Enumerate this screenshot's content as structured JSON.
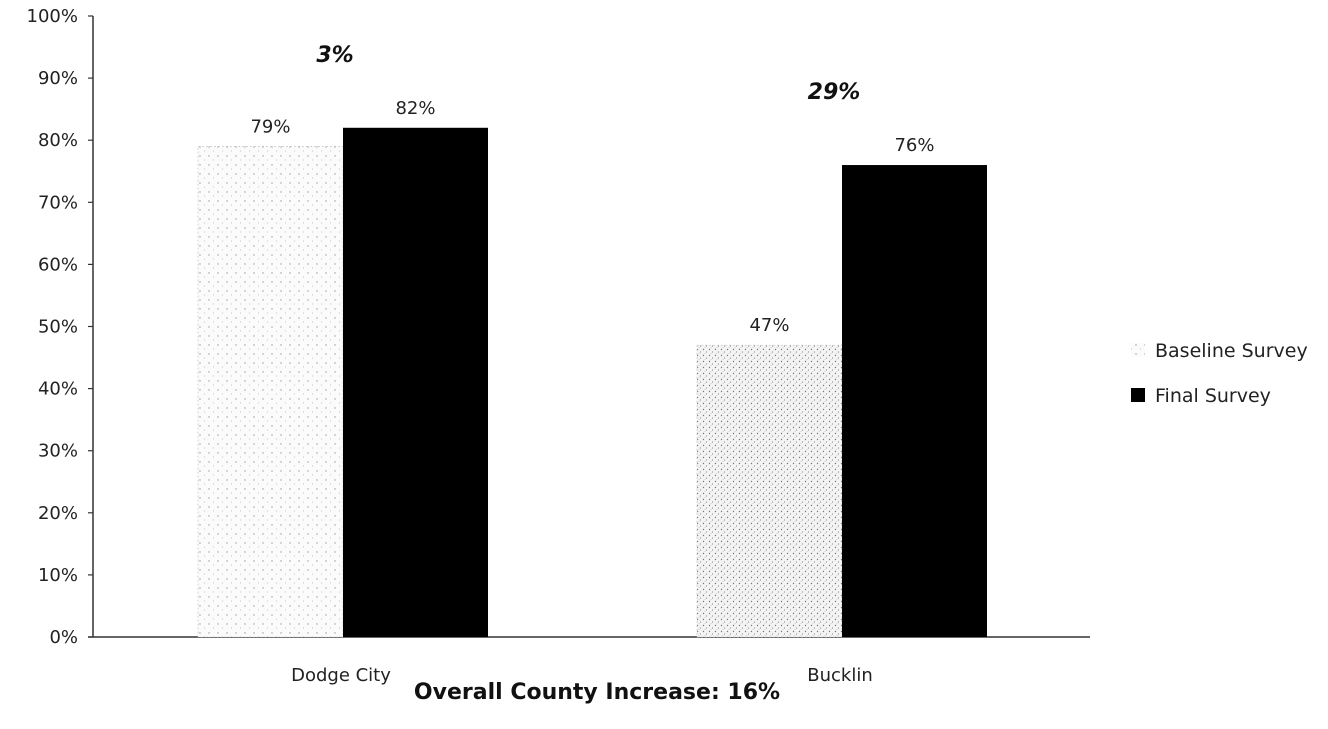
{
  "chart_data": {
    "type": "bar",
    "categories": [
      "Dodge City",
      "Bucklin"
    ],
    "series": [
      {
        "name": "Baseline Survey",
        "values": [
          79,
          47
        ],
        "color": "#f2f2f2",
        "pattern": "sparse-dots"
      },
      {
        "name": "Final Survey",
        "values": [
          82,
          76
        ],
        "color": "#000000",
        "pattern": "solid"
      }
    ],
    "data_labels": [
      [
        "79%",
        "47%"
      ],
      [
        "82%",
        "76%"
      ]
    ],
    "increase_labels": [
      "3%",
      "29%"
    ],
    "increase_values": [
      3,
      29
    ],
    "ylim": [
      0,
      100
    ],
    "yticks": [
      0,
      10,
      20,
      30,
      40,
      50,
      60,
      70,
      80,
      90,
      100
    ],
    "ytick_labels": [
      "0%",
      "10%",
      "20%",
      "30%",
      "40%",
      "50%",
      "60%",
      "70%",
      "80%",
      "90%",
      "100%"
    ],
    "grid": false,
    "legend_position": "right",
    "footer": "Overall County Increase: 16%"
  }
}
